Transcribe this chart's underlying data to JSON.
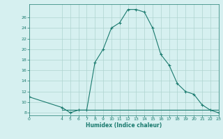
{
  "x_main": [
    0,
    4,
    5,
    6,
    7,
    8,
    9,
    10,
    11,
    12,
    13,
    14,
    15,
    16,
    17,
    18,
    19,
    20,
    21,
    22,
    23
  ],
  "y_main": [
    11,
    9,
    8,
    8.5,
    8.5,
    17.5,
    20,
    24,
    25,
    27.5,
    27.5,
    27,
    24,
    19,
    17,
    13.5,
    12,
    11.5,
    9.5,
    8.5,
    8
  ],
  "x_flat": [
    4,
    5,
    6,
    7,
    8,
    9,
    10,
    11,
    12,
    13,
    14,
    15,
    16,
    17,
    18,
    19,
    20,
    21,
    22,
    23
  ],
  "y_flat": [
    8.5,
    8.5,
    8.5,
    8.5,
    8.5,
    8.5,
    8.5,
    8.5,
    8.5,
    8.5,
    8.5,
    8.5,
    8.5,
    8.5,
    8.5,
    8.5,
    8.5,
    8.5,
    8.5,
    8.5
  ],
  "xlim": [
    0,
    23
  ],
  "ylim": [
    7.5,
    28.5
  ],
  "yticks": [
    8,
    10,
    12,
    14,
    16,
    18,
    20,
    22,
    24,
    26
  ],
  "xticks": [
    0,
    4,
    5,
    6,
    7,
    8,
    9,
    10,
    11,
    12,
    13,
    14,
    15,
    16,
    17,
    18,
    19,
    20,
    21,
    22,
    23
  ],
  "xlabel": "Humidex (Indice chaleur)",
  "line_color": "#1a7a6e",
  "bg_color": "#d6f0f0",
  "grid_color": "#aed4d0"
}
